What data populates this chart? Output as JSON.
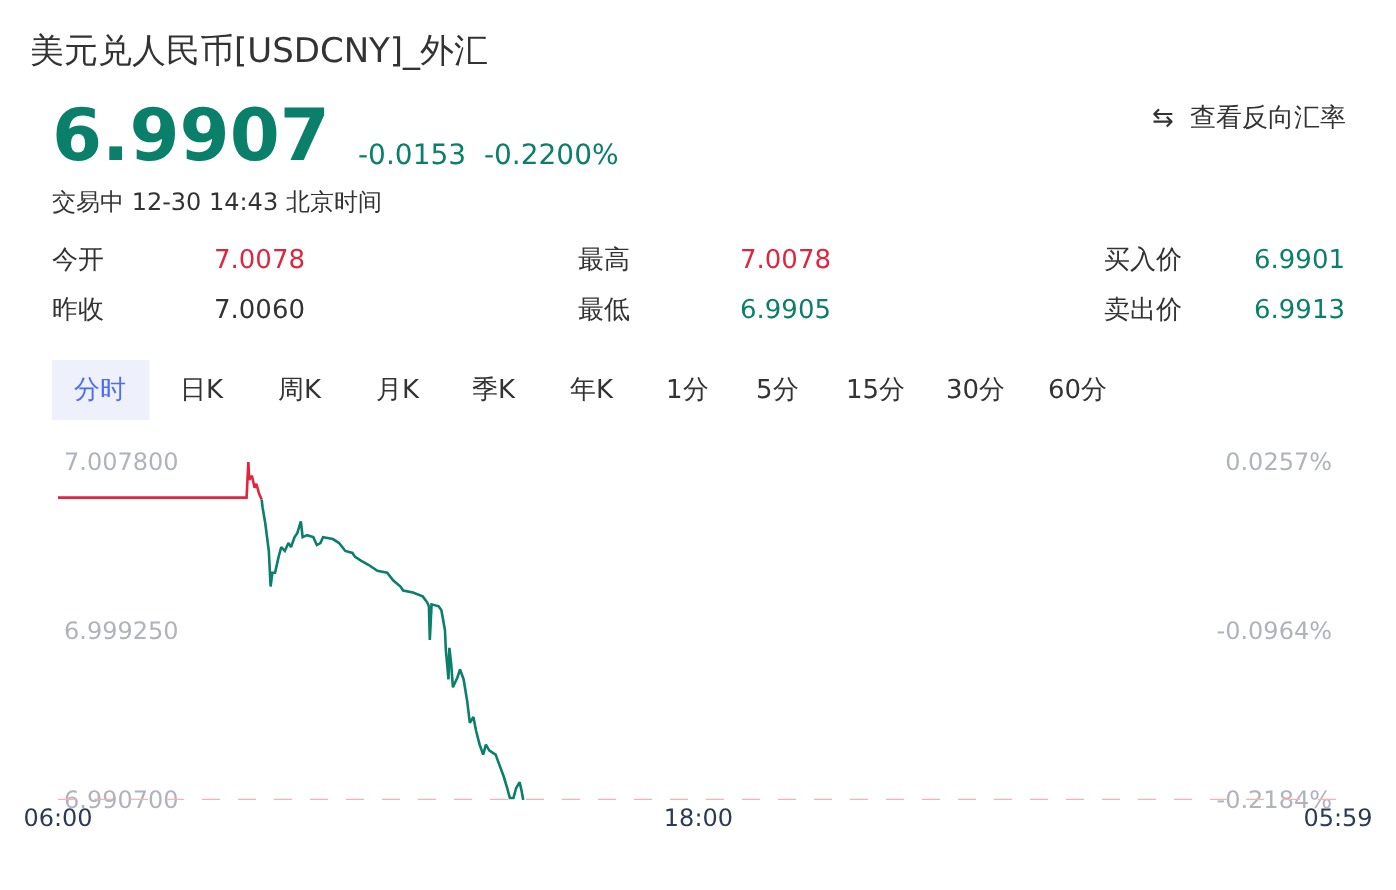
{
  "chart_data": {
    "type": "line",
    "title": "美元兑人民币[USDCNY]_外汇",
    "annotations": [
      "6.9907",
      "-0.0153  -0.2200%",
      "⇆  查看反向汇率",
      "交易中 12-30 14:43 北京时间",
      "今开",
      "7.0078",
      "最高",
      "7.0078",
      "买入价",
      "6.9901",
      "昨收",
      "7.0060",
      "最低",
      "6.9905",
      "卖出价",
      "6.9913",
      "分时",
      "日K",
      "周K",
      "月K",
      "季K",
      "年K",
      "1分",
      "5分",
      "15分",
      "30分",
      "60分"
    ],
    "series": [
      {
        "color": "#e0263f",
        "x": [
          "--12-30T06:00",
          "--12-30T09:32",
          "--12-30T09:34",
          "--12-30T09:35",
          "--12-30T09:38",
          "--12-30T09:41",
          "--12-30T09:43",
          "--12-30T09:46",
          "--12-30T09:49"
        ],
        "values": [
          7.006,
          7.006,
          7.0078,
          7.0069,
          7.0071,
          7.0065,
          7.0067,
          7.0062,
          7.0059
        ]
      },
      {
        "color": "#0a7f6a",
        "x": [
          "--12-30T09:49",
          "--12-30T09:50",
          "--12-30T09:53",
          "--12-30T09:57",
          "--12-30T09:59",
          "--12-30T10:01",
          "--12-30T10:04",
          "--12-30T10:08",
          "--12-30T10:11",
          "--12-30T10:15",
          "--12-30T10:19",
          "--12-30T10:22",
          "--12-30T10:26",
          "--12-30T10:29",
          "--12-30T10:33",
          "--12-30T10:35",
          "--12-30T10:40",
          "--12-30T10:47",
          "--12-30T10:51",
          "--12-30T10:55",
          "--12-30T10:58",
          "--12-30T11:09",
          "--12-30T11:16",
          "--12-30T11:23",
          "--12-30T11:31",
          "--12-30T11:34",
          "--12-30T11:41",
          "--12-30T11:49",
          "--12-30T11:59",
          "--12-30T12:10",
          "--12-30T12:17",
          "--12-30T12:25",
          "--12-30T12:28",
          "--12-30T12:39",
          "--12-30T12:50",
          "--12-30T12:55",
          "--12-30T12:57",
          "--12-30T12:58",
          "--12-30T13:00",
          "--12-30T13:08",
          "--12-30T13:11",
          "--12-30T13:15",
          "--12-30T13:16",
          "--12-30T13:19",
          "--12-30T13:20",
          "--12-30T13:22",
          "--12-30T13:24",
          "--12-30T13:29",
          "--12-30T13:32",
          "--12-30T13:36",
          "--12-30T13:40",
          "--12-30T13:43",
          "--12-30T13:47",
          "--12-30T13:50",
          "--12-30T13:54",
          "--12-30T13:58",
          "--12-30T14:01",
          "--12-30T14:05",
          "--12-30T14:12",
          "--12-30T14:16",
          "--12-30T14:21",
          "--12-30T14:25",
          "--12-30T14:28",
          "--12-30T14:32",
          "--12-30T14:35",
          "--12-30T14:39",
          "--12-30T14:41",
          "--12-30T14:43"
        ],
        "values": [
          7.0059,
          7.0055,
          7.0047,
          7.0033,
          7.0015,
          7.0022,
          7.0022,
          7.003,
          7.0035,
          7.0033,
          7.0037,
          7.0035,
          7.004,
          7.0042,
          7.0048,
          7.004,
          7.0041,
          7.004,
          7.0036,
          7.0037,
          7.004,
          7.0039,
          7.0037,
          7.0033,
          7.0032,
          7.003,
          7.0028,
          7.0026,
          7.0023,
          7.0022,
          7.0018,
          7.0015,
          7.0013,
          7.0012,
          7.001,
          7.0007,
          7.0005,
          6.9988,
          7.0006,
          7.0005,
          7.0003,
          6.9993,
          6.9983,
          6.9968,
          6.9984,
          6.9976,
          6.9964,
          6.9969,
          6.9973,
          6.9968,
          6.9957,
          6.9946,
          6.9949,
          6.9942,
          6.9935,
          6.993,
          6.9935,
          6.9932,
          6.993,
          6.9925,
          6.9919,
          6.9913,
          6.9908,
          6.9908,
          6.9913,
          6.9916,
          6.9912,
          6.9907
        ]
      }
    ],
    "xlim": [
      "--12-30T06:00",
      "--12-31T05:59"
    ],
    "xticks": [
      {
        "value": "--12-30T06:00",
        "label": "06:00"
      },
      {
        "value": "--12-30T18:00",
        "label": "18:00"
      },
      {
        "value": "--12-31T05:59",
        "label": "05:59"
      }
    ],
    "ylim": [
      6.9907,
      7.0078
    ],
    "yticks": [
      {
        "value": 6.9907,
        "label": "6.990700"
      },
      {
        "value": 6.99925,
        "label": "6.999250"
      },
      {
        "value": 7.0078,
        "label": "7.007800"
      }
    ],
    "y2lim": [
      -0.2184,
      0.0257
    ],
    "y2ticks": [
      {
        "value": -0.2184,
        "label": "-0.2184%"
      },
      {
        "value": -0.0964,
        "label": "-0.0964%"
      },
      {
        "value": 0.0257,
        "label": "0.0257%"
      }
    ],
    "ref_lines": [
      {
        "axis": "y",
        "value": 6.9907,
        "color": "#f7b3b3",
        "line_style": "dashed"
      }
    ],
    "marker": "none",
    "line_style": "solid"
  }
}
